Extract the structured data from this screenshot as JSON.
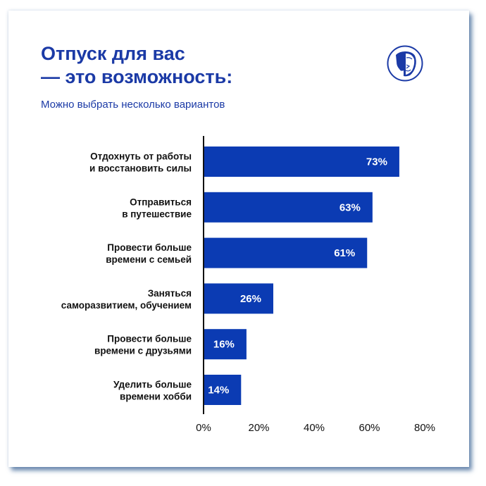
{
  "title_line1": "Отпуск для вас",
  "title_line2": "— это возможность:",
  "subtitle": "Можно выбрать несколько вариантов",
  "logo": "lion-head-logo",
  "colors": {
    "bar": "#0b3bb3",
    "title": "#1b3aa6"
  },
  "chart_data": {
    "type": "bar",
    "orientation": "horizontal",
    "categories": [
      [
        "Отдохнуть от работы",
        "и восстановить силы"
      ],
      [
        "Отправиться",
        "в путешествие"
      ],
      [
        "Провести больше",
        "времени с семьей"
      ],
      [
        "Заняться",
        "саморазвитием, обучением"
      ],
      [
        "Провести больше",
        "времени с друзьями"
      ],
      [
        "Уделить больше",
        "времени хобби"
      ]
    ],
    "values": [
      73,
      63,
      61,
      26,
      16,
      14
    ],
    "data_labels": [
      "73%",
      "63%",
      "61%",
      "26%",
      "16%",
      "14%"
    ],
    "xlim": [
      0,
      80
    ],
    "xticks": [
      0,
      20,
      40,
      60,
      80
    ],
    "xtick_labels": [
      "0%",
      "20%",
      "40%",
      "60%",
      "80%"
    ],
    "grid": false
  }
}
